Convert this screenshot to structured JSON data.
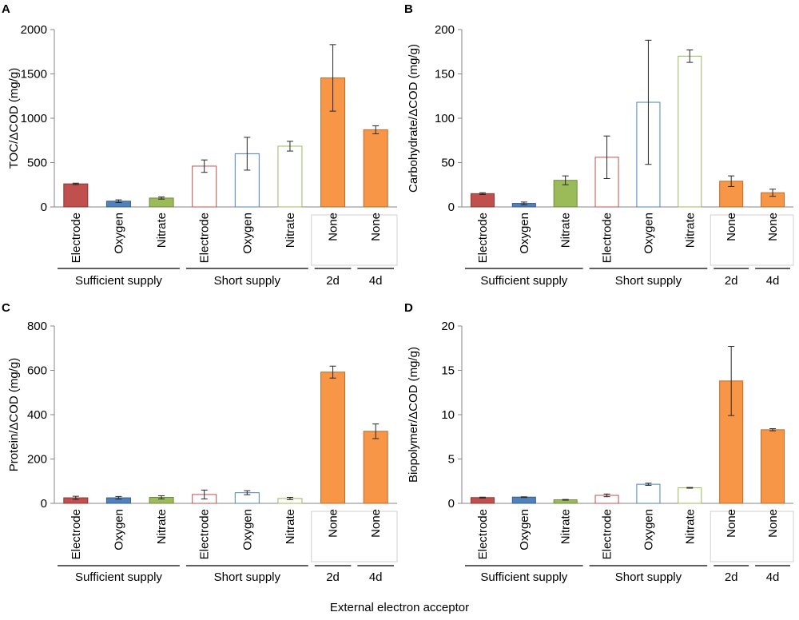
{
  "figure": {
    "xlabel": "External electron acceptor"
  },
  "chart_data": [
    {
      "panel": "A",
      "type": "bar",
      "ylabel": "TOC/ΔCOD (mg/g)",
      "ylim": [
        0,
        2000
      ],
      "yticks": [
        0,
        500,
        1000,
        1500,
        2000
      ],
      "categories": [
        "Electrode",
        "Oxygen",
        "Nitrate",
        "Electrode",
        "Oxygen",
        "Nitrate",
        "None",
        "None"
      ],
      "values": [
        260,
        65,
        100,
        460,
        600,
        685,
        1455,
        870
      ],
      "errors": [
        8,
        15,
        12,
        70,
        185,
        55,
        375,
        45
      ],
      "groups": [
        {
          "label": "Sufficient supply",
          "span": [
            0,
            2
          ]
        },
        {
          "label": "Short supply",
          "span": [
            3,
            5
          ]
        },
        {
          "label": "2d",
          "span": [
            6,
            6
          ]
        },
        {
          "label": "4d",
          "span": [
            7,
            7
          ]
        }
      ],
      "none_box": true
    },
    {
      "panel": "B",
      "type": "bar",
      "ylabel": "Carbohydrate/ΔCOD (mg/g)",
      "ylim": [
        0,
        200
      ],
      "yticks": [
        0,
        50,
        100,
        150,
        200
      ],
      "categories": [
        "Electrode",
        "Oxygen",
        "Nitrate",
        "Electrode",
        "Oxygen",
        "Nitrate",
        "None",
        "None"
      ],
      "values": [
        15,
        4,
        30,
        56,
        118,
        170,
        29,
        16
      ],
      "errors": [
        1,
        1.5,
        5,
        24,
        70,
        7,
        6,
        4
      ],
      "groups": [
        {
          "label": "Sufficient supply",
          "span": [
            0,
            2
          ]
        },
        {
          "label": "Short supply",
          "span": [
            3,
            5
          ]
        },
        {
          "label": "2d",
          "span": [
            6,
            6
          ]
        },
        {
          "label": "4d",
          "span": [
            7,
            7
          ]
        }
      ],
      "none_box": true
    },
    {
      "panel": "C",
      "type": "bar",
      "ylabel": "Protein/ΔCOD (mg/g)",
      "ylim": [
        0,
        800
      ],
      "yticks": [
        0,
        200,
        400,
        600,
        800
      ],
      "categories": [
        "Electrode",
        "Oxygen",
        "Nitrate",
        "Electrode",
        "Oxygen",
        "Nitrate",
        "None",
        "None"
      ],
      "values": [
        25,
        25,
        27,
        40,
        48,
        22,
        592,
        325
      ],
      "errors": [
        7,
        6,
        7,
        20,
        9,
        5,
        27,
        33
      ],
      "groups": [
        {
          "label": "Sufficient supply",
          "span": [
            0,
            2
          ]
        },
        {
          "label": "Short supply",
          "span": [
            3,
            5
          ]
        },
        {
          "label": "2d",
          "span": [
            6,
            6
          ]
        },
        {
          "label": "4d",
          "span": [
            7,
            7
          ]
        }
      ],
      "none_box": true
    },
    {
      "panel": "D",
      "type": "bar",
      "ylabel": "Biopolymer/ΔCOD (mg/g)",
      "ylim": [
        0,
        20
      ],
      "yticks": [
        0,
        5,
        10,
        15,
        20
      ],
      "categories": [
        "Electrode",
        "Oxygen",
        "Nitrate",
        "Electrode",
        "Oxygen",
        "Nitrate",
        "None",
        "None"
      ],
      "values": [
        0.65,
        0.7,
        0.4,
        0.9,
        2.15,
        1.75,
        13.8,
        8.3
      ],
      "errors": [
        0.05,
        0.04,
        0.04,
        0.15,
        0.12,
        0.04,
        3.9,
        0.12
      ],
      "groups": [
        {
          "label": "Sufficient supply",
          "span": [
            0,
            2
          ]
        },
        {
          "label": "Short supply",
          "span": [
            3,
            5
          ]
        },
        {
          "label": "2d",
          "span": [
            6,
            6
          ]
        },
        {
          "label": "4d",
          "span": [
            7,
            7
          ]
        }
      ],
      "none_box": true
    }
  ],
  "style": {
    "fills": [
      "#c0504d",
      "#4f81bd",
      "#9bbb59",
      "#ffffff",
      "#ffffff",
      "#ffffff",
      "#f79646",
      "#f79646"
    ],
    "strokes": [
      "#8c3836",
      "#385d8a",
      "#71893f",
      "#c0504d",
      "#4f81bd",
      "#9bbb59",
      "#b66d31",
      "#b66d31"
    ],
    "axis": "#868686",
    "errorbar": "#262626",
    "boxStroke": "#d0d0d0"
  }
}
